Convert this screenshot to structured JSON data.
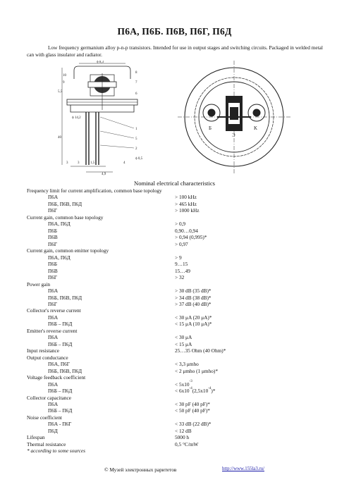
{
  "title": "П6А, П6Б. П6В, П6Г, П6Д",
  "description": "Low frequency germanium alloy p-n-p transistors. Intended for use in output stages and switching circuits. Packaged in welded metal can with glass insulator and radiator.",
  "drawing_labels": {
    "dia_top": "ϕ 8,3",
    "dim_left_top": "5,5",
    "dim_left_bottom": "40",
    "dia_ring": "ϕ 14,2",
    "num_10": "10",
    "num_9": "9",
    "num_8": "8",
    "num_7": "7",
    "num_6": "6",
    "num_1": "1",
    "num_2": "2",
    "num_3": "3",
    "num_4": "4",
    "num_5": "5",
    "dim_bot_1": "3",
    "dim_bot_2": "1,5",
    "dim_bot_3": "4,9",
    "dim_bot_4": "ϕ 0,5",
    "pin_b": "Б",
    "pin_e": "Э",
    "pin_k": "K"
  },
  "section_title": "Nominal electrical characteristics",
  "rows": [
    {
      "param": "Frequency limit for current amplification, common base topology",
      "value": "",
      "sub": false
    },
    {
      "param": "П6А",
      "value": "> 100 kHz",
      "sub": true
    },
    {
      "param": "П6Б, П6В, П6Д",
      "value": "> 465 kHz",
      "sub": true
    },
    {
      "param": "П6Г",
      "value": "> 1000 kHz",
      "sub": true
    },
    {
      "param": "Current gain, common base topology",
      "value": "",
      "sub": false
    },
    {
      "param": "П6А, П6Д",
      "value": "> 0,9",
      "sub": true
    },
    {
      "param": "П6Б",
      "value": "0,90…0,94",
      "sub": true
    },
    {
      "param": "П6В",
      "value": "> 0,94 (0,995)*",
      "sub": true
    },
    {
      "param": "П6Г",
      "value": "> 0,97",
      "sub": true
    },
    {
      "param": "Current gain, common emitter topology",
      "value": "",
      "sub": false
    },
    {
      "param": "П6А, П6Д",
      "value": "> 9",
      "sub": true
    },
    {
      "param": "П6Б",
      "value": "9…15",
      "sub": true
    },
    {
      "param": "П6В",
      "value": "15…49",
      "sub": true
    },
    {
      "param": "П6Г",
      "value": "> 32",
      "sub": true
    },
    {
      "param": "Power gain",
      "value": "",
      "sub": false
    },
    {
      "param": "П6А",
      "value": "> 30 dB (35 dB)*",
      "sub": true
    },
    {
      "param": "П6Б, П6В, П6Д",
      "value": "> 34 dB (38 dB)*",
      "sub": true
    },
    {
      "param": "П6Г",
      "value": "> 37 dB (40 dB)*",
      "sub": true
    },
    {
      "param": "Collector's reverse current",
      "value": "",
      "sub": false
    },
    {
      "param": "П6А",
      "value": "< 30 μA (20 μA)*",
      "sub": true
    },
    {
      "param": "П6Б – П6Д",
      "value": "< 15 μA (10 μA)*",
      "sub": true
    },
    {
      "param": "Emitter's reverse current",
      "value": "",
      "sub": false
    },
    {
      "param": "П6А",
      "value": "< 30 μA",
      "sub": true
    },
    {
      "param": "П6Б – П6Д",
      "value": "< 15 μA",
      "sub": true
    },
    {
      "param": "Input resistance",
      "value": "25…35 Ohm (40 Ohm)*",
      "sub": false
    },
    {
      "param": "Output conductance",
      "value": "",
      "sub": false
    },
    {
      "param": "П6А, П6Г",
      "value": "< 3,3 μmho",
      "sub": true
    },
    {
      "param": "П6Б, П6В, П6Д",
      "value": "< 2 μmho (1 μmho)*",
      "sub": true
    },
    {
      "param": "Voltage feedback coefficient",
      "value": "",
      "sub": false
    },
    {
      "param": "П6А",
      "value": "< 5x10",
      "sup": "-3",
      "tail": "",
      "sub": true
    },
    {
      "param": "П6Б – П6Д",
      "value": "< 6x10",
      "sup": "-4",
      "tail": "(2,5x10",
      "sup2": "-4",
      "tail2": ")*",
      "sub": true
    },
    {
      "param": "Collector capacitance",
      "value": "",
      "sub": false
    },
    {
      "param": "П6А",
      "value": "< 30 pF (40 pF)*",
      "sub": true
    },
    {
      "param": "П6Б – П6Д",
      "value": "< 50 pF (40 pF)*",
      "sub": true
    },
    {
      "param": "Noise coefficient",
      "value": "",
      "sub": false
    },
    {
      "param": "П6А - П6Г",
      "value": "< 33 dB (22 dB)*",
      "sub": true
    },
    {
      "param": "П6Д",
      "value": "< 12 dB",
      "sub": true
    },
    {
      "param": "Lifespan",
      "value": "5000 h",
      "sub": false
    },
    {
      "param": "Thermal resistance",
      "value": "0,5 °C/mW",
      "sub": false
    },
    {
      "param": "* according to some sources",
      "value": "",
      "sub": false,
      "italic": true
    }
  ],
  "footer": {
    "copyright": "© Музей электронных раритетов",
    "url": "http://www.155la3.ru/"
  }
}
